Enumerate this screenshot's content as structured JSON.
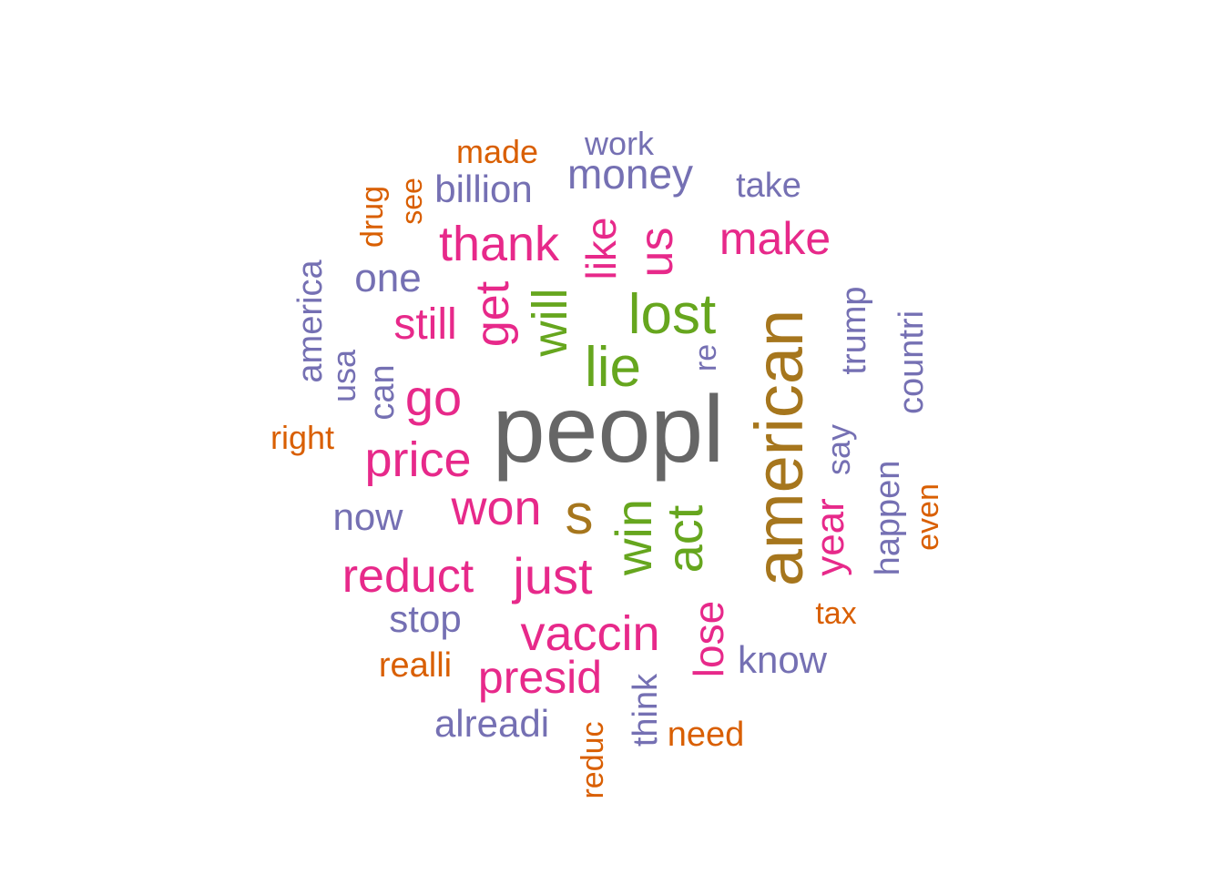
{
  "palette": {
    "gray": "#666666",
    "olive": "#A6761D",
    "green": "#66A61E",
    "magenta": "#E7298A",
    "purple": "#7570B3",
    "orange": "#D95F02"
  },
  "words": [
    {
      "text": "peopl",
      "color": "gray",
      "weight": 100
    },
    {
      "text": "american",
      "color": "olive",
      "weight": 90
    },
    {
      "text": "s",
      "color": "olive",
      "weight": 60
    },
    {
      "text": "lost",
      "color": "green",
      "weight": 55
    },
    {
      "text": "lie",
      "color": "green",
      "weight": 55
    },
    {
      "text": "will",
      "color": "green",
      "weight": 50
    },
    {
      "text": "win",
      "color": "green",
      "weight": 50
    },
    {
      "text": "act",
      "color": "green",
      "weight": 50
    },
    {
      "text": "thank",
      "color": "magenta",
      "weight": 45
    },
    {
      "text": "get",
      "color": "magenta",
      "weight": 45
    },
    {
      "text": "like",
      "color": "magenta",
      "weight": 42
    },
    {
      "text": "us",
      "color": "magenta",
      "weight": 45
    },
    {
      "text": "make",
      "color": "magenta",
      "weight": 42
    },
    {
      "text": "still",
      "color": "magenta",
      "weight": 40
    },
    {
      "text": "go",
      "color": "magenta",
      "weight": 45
    },
    {
      "text": "price",
      "color": "magenta",
      "weight": 45
    },
    {
      "text": "won",
      "color": "magenta",
      "weight": 45
    },
    {
      "text": "just",
      "color": "magenta",
      "weight": 48
    },
    {
      "text": "reduct",
      "color": "magenta",
      "weight": 42
    },
    {
      "text": "vaccin",
      "color": "magenta",
      "weight": 48
    },
    {
      "text": "presid",
      "color": "magenta",
      "weight": 45
    },
    {
      "text": "lose",
      "color": "magenta",
      "weight": 40
    },
    {
      "text": "year",
      "color": "magenta",
      "weight": 40
    },
    {
      "text": "money",
      "color": "purple",
      "weight": 40
    },
    {
      "text": "billion",
      "color": "purple",
      "weight": 35
    },
    {
      "text": "work",
      "color": "purple",
      "weight": 30
    },
    {
      "text": "take",
      "color": "purple",
      "weight": 30
    },
    {
      "text": "one",
      "color": "purple",
      "weight": 35
    },
    {
      "text": "america",
      "color": "purple",
      "weight": 30
    },
    {
      "text": "usa",
      "color": "purple",
      "weight": 30
    },
    {
      "text": "can",
      "color": "purple",
      "weight": 30
    },
    {
      "text": "re",
      "color": "purple",
      "weight": 30
    },
    {
      "text": "trump",
      "color": "purple",
      "weight": 30
    },
    {
      "text": "countri",
      "color": "purple",
      "weight": 30
    },
    {
      "text": "say",
      "color": "purple",
      "weight": 30
    },
    {
      "text": "happen",
      "color": "purple",
      "weight": 30
    },
    {
      "text": "now",
      "color": "purple",
      "weight": 35
    },
    {
      "text": "stop",
      "color": "purple",
      "weight": 35
    },
    {
      "text": "know",
      "color": "purple",
      "weight": 33
    },
    {
      "text": "think",
      "color": "purple",
      "weight": 30
    },
    {
      "text": "alreadi",
      "color": "purple",
      "weight": 35
    },
    {
      "text": "made",
      "color": "orange",
      "weight": 30
    },
    {
      "text": "drug",
      "color": "orange",
      "weight": 30
    },
    {
      "text": "see",
      "color": "orange",
      "weight": 30
    },
    {
      "text": "right",
      "color": "orange",
      "weight": 30
    },
    {
      "text": "even",
      "color": "orange",
      "weight": 28
    },
    {
      "text": "tax",
      "color": "orange",
      "weight": 28
    },
    {
      "text": "realli",
      "color": "orange",
      "weight": 30
    },
    {
      "text": "need",
      "color": "orange",
      "weight": 30
    },
    {
      "text": "reduc",
      "color": "orange",
      "weight": 28
    }
  ]
}
